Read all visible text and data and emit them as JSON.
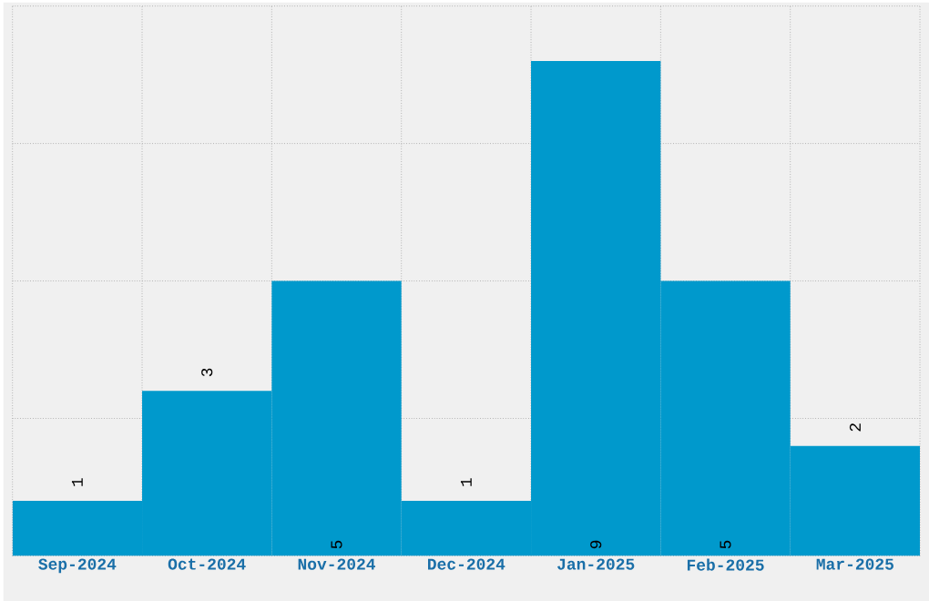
{
  "chart_data": {
    "type": "bar",
    "categories": [
      "Sep-2024",
      "Oct-2024",
      "Nov-2024",
      "Dec-2024",
      "Jan-2025",
      "Feb-2025",
      "Mar-2025"
    ],
    "values": [
      1,
      3,
      5,
      1,
      9,
      5,
      2
    ],
    "color": "#0099cc",
    "ylim": [
      0,
      10
    ],
    "yticks": [
      {
        "value": 0,
        "label": null
      },
      {
        "value": 2.5,
        "label": null
      },
      {
        "value": 5,
        "label": null
      },
      {
        "value": 7.5,
        "label": null
      },
      {
        "value": 10,
        "label": null
      }
    ],
    "tick_labels": "x",
    "grid": true,
    "data_labels": true
  }
}
